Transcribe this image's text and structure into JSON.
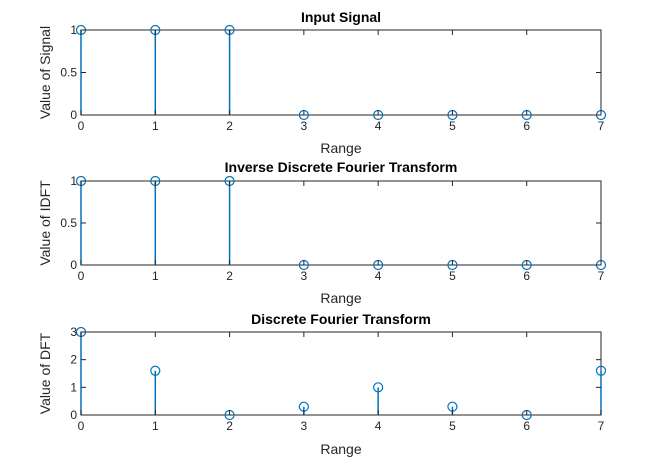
{
  "chart_data": [
    {
      "type": "stem",
      "title": "Input Signal",
      "xlabel": "Range",
      "ylabel": "Value of Signal",
      "xlim": [
        0,
        7
      ],
      "ylim": [
        0,
        1
      ],
      "x_ticks": [
        0,
        1,
        2,
        3,
        4,
        5,
        6,
        7
      ],
      "y_ticks": [
        0,
        0.5,
        1
      ],
      "x": [
        0,
        1,
        2,
        3,
        4,
        5,
        6,
        7
      ],
      "values": [
        1,
        1,
        1,
        0,
        0,
        0,
        0,
        0
      ],
      "grid": false,
      "color": "#0072BD"
    },
    {
      "type": "stem",
      "title": "Inverse Discrete Fourier Transform",
      "xlabel": "Range",
      "ylabel": "Value of IDFT",
      "xlim": [
        0,
        7
      ],
      "ylim": [
        0,
        1
      ],
      "x_ticks": [
        0,
        1,
        2,
        3,
        4,
        5,
        6,
        7
      ],
      "y_ticks": [
        0,
        0.5,
        1
      ],
      "x": [
        0,
        1,
        2,
        3,
        4,
        5,
        6,
        7
      ],
      "values": [
        1,
        1,
        1,
        0,
        0,
        0,
        0,
        0
      ],
      "grid": false,
      "color": "#0072BD"
    },
    {
      "type": "stem",
      "title": "Discrete Fourier Transform",
      "xlabel": "Range",
      "ylabel": "Value of DFT",
      "xlim": [
        0,
        7
      ],
      "ylim": [
        0,
        3
      ],
      "x_ticks": [
        0,
        1,
        2,
        3,
        4,
        5,
        6,
        7
      ],
      "y_ticks": [
        0,
        1,
        2,
        3
      ],
      "x": [
        0,
        1,
        2,
        3,
        4,
        5,
        6,
        7
      ],
      "values": [
        3,
        1.6,
        0,
        0.3,
        1,
        0.3,
        0,
        1.6
      ],
      "grid": false,
      "color": "#0072BD"
    }
  ]
}
